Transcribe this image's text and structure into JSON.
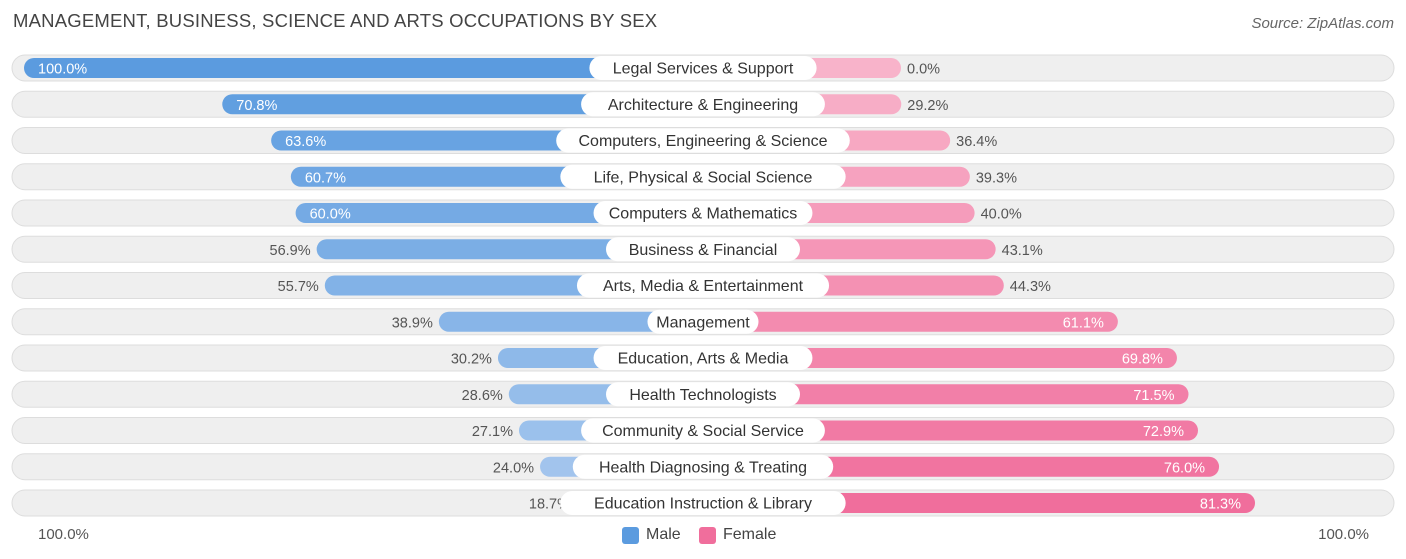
{
  "header": {
    "title": "MANAGEMENT, BUSINESS, SCIENCE AND ARTS OCCUPATIONS BY SEX",
    "source": "Source: ZipAtlas.com"
  },
  "colors": {
    "male_strong": "#5b9bdf",
    "male_light": "#a8c8ee",
    "female_strong": "#f06e9c",
    "female_light": "#f8b3ca",
    "row_bg": "#efefef",
    "row_border": "#dddddd"
  },
  "chart_data": {
    "type": "bar",
    "orientation": "horizontal-diverging",
    "title": "MANAGEMENT, BUSINESS, SCIENCE AND ARTS OCCUPATIONS BY SEX",
    "categories": [
      "Legal Services & Support",
      "Architecture & Engineering",
      "Computers, Engineering & Science",
      "Life, Physical & Social Science",
      "Computers & Mathematics",
      "Business & Financial",
      "Arts, Media & Entertainment",
      "Management",
      "Education, Arts & Media",
      "Health Technologists",
      "Community & Social Service",
      "Health Diagnosing & Treating",
      "Education Instruction & Library"
    ],
    "series": [
      {
        "name": "Male",
        "values": [
          100.0,
          70.8,
          63.6,
          60.7,
          60.0,
          56.9,
          55.7,
          38.9,
          30.2,
          28.6,
          27.1,
          24.0,
          18.7
        ],
        "labels": [
          "100.0%",
          "70.8%",
          "63.6%",
          "60.7%",
          "60.0%",
          "56.9%",
          "55.7%",
          "38.9%",
          "30.2%",
          "28.6%",
          "27.1%",
          "24.0%",
          "18.7%"
        ]
      },
      {
        "name": "Female",
        "values": [
          0.0,
          29.2,
          36.4,
          39.3,
          40.0,
          43.1,
          44.3,
          61.1,
          69.8,
          71.5,
          72.9,
          76.0,
          81.3
        ],
        "labels": [
          "0.0%",
          "29.2%",
          "36.4%",
          "39.3%",
          "40.0%",
          "43.1%",
          "44.3%",
          "61.1%",
          "69.8%",
          "71.5%",
          "72.9%",
          "76.0%",
          "81.3%"
        ]
      }
    ],
    "xlim": [
      -100,
      100
    ],
    "axis_left_label": "100.0%",
    "axis_right_label": "100.0%",
    "legend": {
      "position": "bottom-center",
      "male": "Male",
      "female": "Female"
    }
  }
}
